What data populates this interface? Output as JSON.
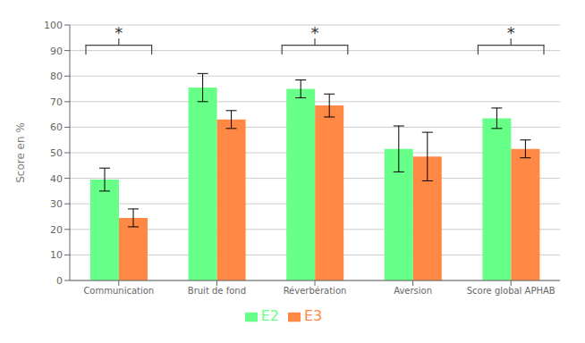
{
  "chart_data": {
    "type": "bar",
    "categories": [
      "Communication",
      "Bruit de fond",
      "Réverbération",
      "Aversion",
      "Score global APHAB"
    ],
    "series": [
      {
        "name": "E2",
        "color": "#66FF88",
        "values": [
          39.5,
          75.5,
          75.0,
          51.5,
          63.5
        ],
        "errors": [
          4.5,
          5.5,
          3.5,
          9.0,
          4.0
        ]
      },
      {
        "name": "E3",
        "color": "#FF8844",
        "values": [
          24.5,
          63.0,
          68.5,
          48.5,
          51.5
        ],
        "errors": [
          3.5,
          3.5,
          4.5,
          9.5,
          3.5
        ]
      }
    ],
    "ylabel": "Score en %",
    "ylim": [
      0,
      100
    ],
    "yticks": [
      0,
      10,
      20,
      30,
      40,
      50,
      60,
      70,
      80,
      90,
      100
    ],
    "grid": true,
    "legend": "bottom",
    "annotations": [
      {
        "text": "*",
        "category": "Communication",
        "y": 97
      },
      {
        "text": "*",
        "category": "Réverbération",
        "y": 97
      },
      {
        "text": "*",
        "category": "Score global APHAB",
        "y": 97
      }
    ]
  }
}
